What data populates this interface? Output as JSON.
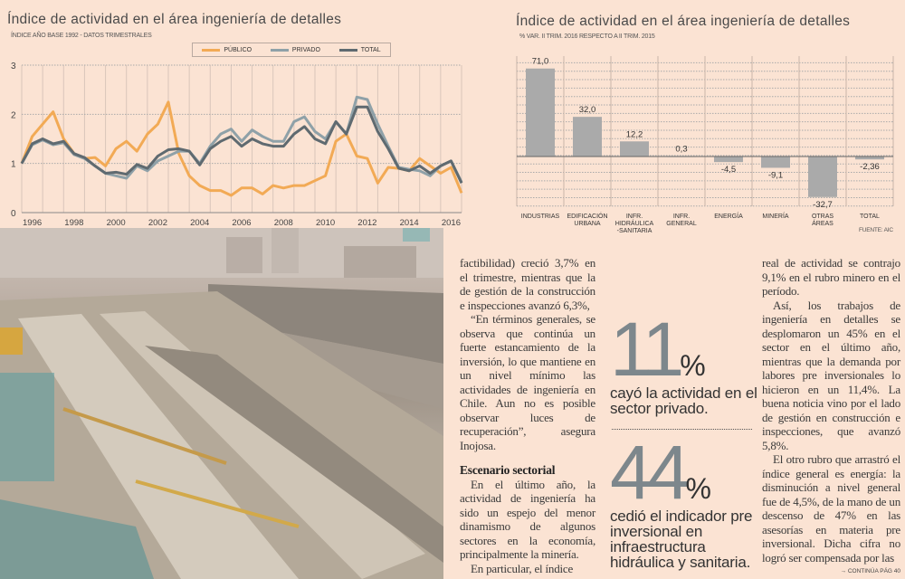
{
  "line_chart": {
    "title": "Índice de actividad en el área ingeniería de detalles",
    "subtitle": "ÍNDICE AÑO BASE 1992 - DATOS TRIMESTRALES",
    "colors": {
      "PÚBLICO": "#f2aa55",
      "PRIVADO": "#8fa1a8",
      "TOTAL": "#5f6a70"
    }
  },
  "bar_chart": {
    "title": "Índice de actividad en el área ingeniería de detalles",
    "subtitle": "% VAR. II TRIM. 2016 RESPECTO A II TRIM. 2015",
    "source": "FUENTE: AIC",
    "bar_color": "#aaaaaa"
  },
  "chart_data": [
    {
      "type": "line",
      "title": "Índice de actividad en el área ingeniería de detalles",
      "subtitle": "ÍNDICE AÑO BASE 1992 - DATOS TRIMESTRALES",
      "xlim": [
        1995.5,
        2016.5
      ],
      "ylim": [
        0,
        3
      ],
      "yticks": [
        "0",
        "1",
        "2",
        "3"
      ],
      "xticks": [
        "1996",
        "1998",
        "2000",
        "2002",
        "2004",
        "2006",
        "2008",
        "2010",
        "2012",
        "2014",
        "2016"
      ],
      "grid": true,
      "legend": "top-right",
      "x": [
        1995.5,
        1996,
        1996.5,
        1997,
        1997.5,
        1998,
        1998.5,
        1999,
        1999.5,
        2000,
        2000.5,
        2001,
        2001.5,
        2002,
        2002.5,
        2003,
        2003.5,
        2004,
        2004.5,
        2005,
        2005.5,
        2006,
        2006.5,
        2007,
        2007.5,
        2008,
        2008.5,
        2009,
        2009.5,
        2010,
        2010.5,
        2011,
        2011.5,
        2012,
        2012.5,
        2013,
        2013.5,
        2014,
        2014.5,
        2015,
        2015.5,
        2016,
        2016.5
      ],
      "series": [
        {
          "name": "PÚBLICO",
          "values": [
            1.0,
            1.55,
            1.8,
            2.05,
            1.5,
            1.2,
            1.1,
            1.12,
            0.95,
            1.3,
            1.45,
            1.25,
            1.6,
            1.8,
            2.25,
            1.2,
            0.75,
            0.55,
            0.45,
            0.45,
            0.35,
            0.5,
            0.5,
            0.38,
            0.55,
            0.5,
            0.55,
            0.55,
            0.65,
            0.75,
            1.45,
            1.6,
            1.15,
            1.1,
            0.6,
            0.92,
            0.9,
            0.85,
            1.1,
            0.95,
            0.8,
            0.92,
            0.4
          ]
        },
        {
          "name": "PRIVADO",
          "values": [
            1.0,
            1.38,
            1.48,
            1.38,
            1.42,
            1.18,
            1.1,
            0.95,
            0.8,
            0.75,
            0.7,
            0.95,
            0.85,
            1.05,
            1.15,
            1.25,
            1.25,
            1.0,
            1.35,
            1.6,
            1.7,
            1.45,
            1.68,
            1.55,
            1.45,
            1.45,
            1.85,
            1.95,
            1.65,
            1.5,
            1.85,
            1.6,
            2.35,
            2.3,
            1.8,
            1.35,
            0.92,
            0.88,
            0.85,
            0.75,
            0.95,
            1.05,
            0.62
          ]
        },
        {
          "name": "TOTAL",
          "values": [
            1.0,
            1.4,
            1.5,
            1.4,
            1.45,
            1.2,
            1.12,
            0.95,
            0.8,
            0.82,
            0.78,
            0.98,
            0.9,
            1.15,
            1.28,
            1.3,
            1.25,
            0.97,
            1.3,
            1.45,
            1.55,
            1.35,
            1.5,
            1.4,
            1.35,
            1.35,
            1.6,
            1.75,
            1.5,
            1.4,
            1.85,
            1.6,
            2.15,
            2.15,
            1.65,
            1.3,
            0.9,
            0.85,
            0.95,
            0.8,
            0.95,
            1.05,
            0.6
          ]
        }
      ]
    },
    {
      "type": "bar",
      "title": "Índice de actividad en el área ingeniería de detalles",
      "subtitle": "% VAR. II TRIM. 2016 RESPECTO A II TRIM. 2015",
      "categories": [
        "INDUSTRIAS",
        "EDIFICACIÓN URBANA",
        "INFR. HIDRÁULICA -SANITARIA",
        "INFR. GENERAL",
        "ENERGÍA",
        "MINERÍA",
        "OTRAS ÁREAS",
        "TOTAL"
      ],
      "values": [
        71.0,
        32.0,
        12.2,
        0.3,
        -4.5,
        -9.1,
        -32.7,
        -2.36
      ],
      "labels": [
        "71,0",
        "32,0",
        "12,2",
        "0,3",
        "-4,5",
        "-9,1",
        "-32,7",
        "-2,36"
      ],
      "ylim": [
        -40,
        80
      ],
      "grid": true
    }
  ],
  "article": {
    "col1": [
      "factibilidad) creció 3,7% en el trimestre, mientras que la de gestión de la construcción e inspecciones avanzó 6,3%,",
      "“En términos generales, se observa que continúa un fuerte estancamiento de la inversión, lo que mantiene en un nivel mínimo las actividades de ingeniería en Chile. Aun no es posible observar luces de recuperación”, asegura Inojosa."
    ],
    "heading": "Escenario sectorial",
    "col1b": [
      "En el último año, la actividad de ingeniería ha sido un espejo del menor dinamismo de algunos sectores en la economía, principalmente la minería.",
      "En particular, el índice"
    ],
    "callout1": {
      "number": "11",
      "unit": "%",
      "text": "cayó la actividad en el sector privado."
    },
    "callout2": {
      "number": "44",
      "unit": "%",
      "text": "cedió el indicador pre inversional en infraestructura hidráulica y sanitaria."
    },
    "col3": [
      "real de actividad se contrajo 9,1% en el rubro minero en el período.",
      "Así, los trabajos de ingeniería en detalles se desplomaron un 45% en el sector en el último año, mientras que la demanda por labores pre inversionales lo hicieron en un 11,4%. La buena noticia vino por el lado de gestión en construcción e inspecciones, que avanzó 5,8%.",
      "El otro rubro que arrastró el índice general es energía: la disminución a nivel general fue de 4,5%, de la mano de un descenso de 47% en las asesorías en materia pre inversional. Dicha cifra no logró ser compensada por las"
    ],
    "continue": "→ CONTINÚA PÁG 40"
  }
}
